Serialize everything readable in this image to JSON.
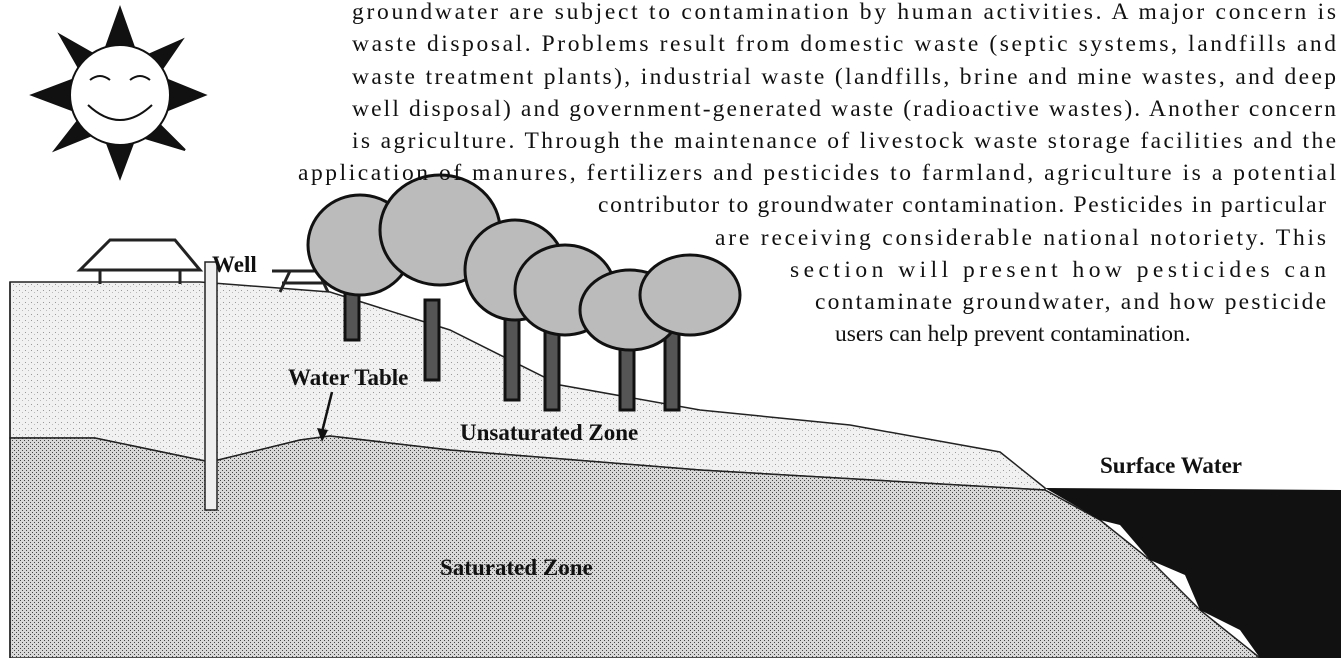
{
  "paragraph": {
    "lines": [
      "groundwater are subject to contamination by human activities. A major concern is",
      "waste disposal. Problems result from domestic waste (septic systems, landfills and",
      "waste treatment plants), industrial waste (landfills, brine and mine wastes, and deep",
      "well disposal) and government-generated waste (radioactive wastes). Another concern",
      "is agriculture. Through the maintenance of livestock waste storage facilities and the",
      "application of manures, fertilizers and pesticides to farmland, agriculture is a potential",
      "contributor to groundwater contamination. Pesticides in particular",
      "are receiving considerable national notoriety. This",
      "section will present how pesticides can",
      "contaminate groundwater, and how pesticide",
      "users can help prevent contamination."
    ]
  },
  "labels": {
    "well": "Well",
    "water_table": "Water Table",
    "unsaturated_zone": "Unsaturated Zone",
    "surface_water": "Surface Water",
    "saturated_zone": "Saturated Zone"
  }
}
